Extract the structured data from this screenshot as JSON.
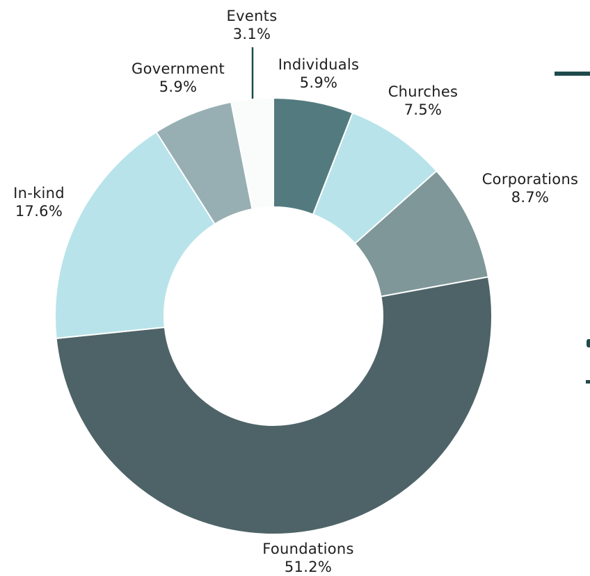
{
  "chart_data": {
    "type": "pie",
    "donut": true,
    "categories": [
      "Individuals",
      "Churches",
      "Corporations",
      "Foundations",
      "In-kind",
      "Government",
      "Events"
    ],
    "values": [
      5.9,
      7.5,
      8.7,
      51.2,
      17.6,
      5.9,
      3.1
    ],
    "value_labels": [
      "5.9%",
      "7.5%",
      "8.7%",
      "51.2%",
      "17.6%",
      "5.9%",
      "3.1%"
    ],
    "colors": [
      "#537b7f",
      "#b8e3ea",
      "#7f9799",
      "#4e6367",
      "#b8e3ea",
      "#97afb2",
      "#fafbfb"
    ],
    "title": "",
    "legend": "none"
  },
  "border_color": "#ffffff",
  "leader_line_color": "#1f4a4c"
}
